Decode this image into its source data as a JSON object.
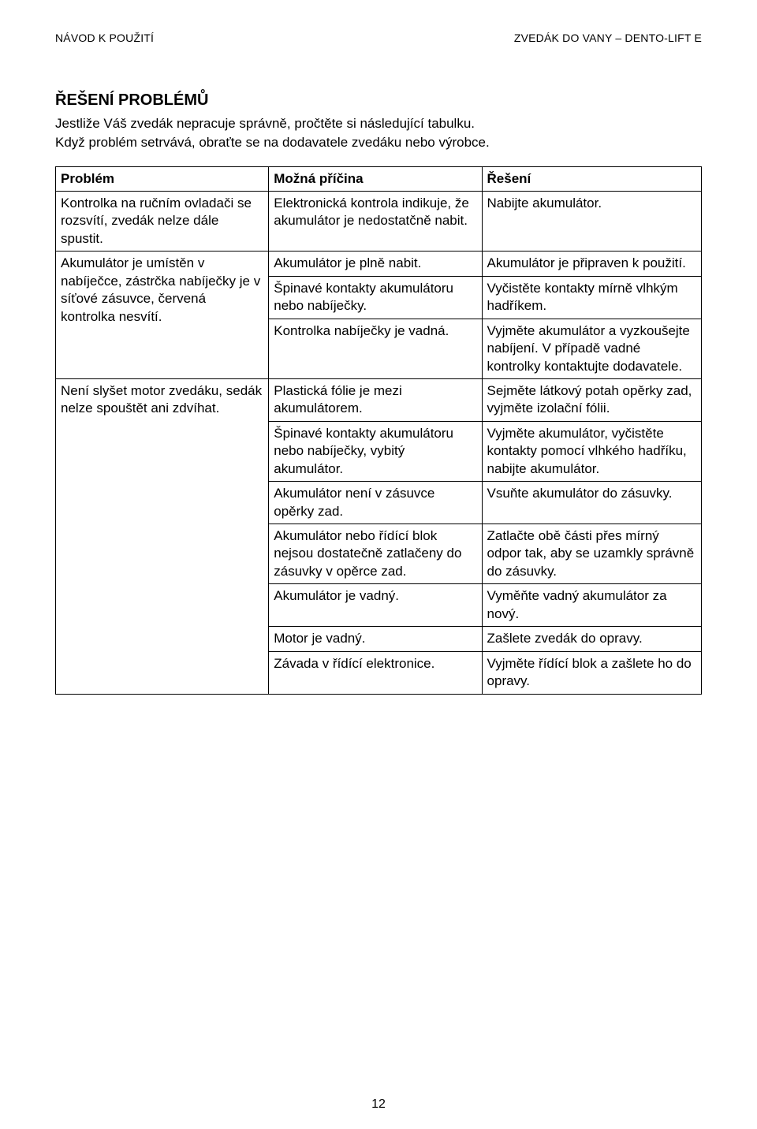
{
  "header": {
    "left": "NÁVOD K POUŽITÍ",
    "right": "ZVEDÁK DO VANY – DENTO-LIFT E"
  },
  "section_title": "ŘEŠENÍ PROBLÉMŮ",
  "intro_line1": "Jestliže Váš zvedák nepracuje správně, pročtěte si následující tabulku.",
  "intro_line2": "Když problém setrvává, obraťte se na dodavatele zvedáku nebo výrobce.",
  "table": {
    "headers": {
      "problem": "Problém",
      "cause": "Možná příčina",
      "fix": "Řešení"
    },
    "problems": [
      {
        "problem": "Kontrolka na ručním ovladači  se rozsvítí, zvedák nelze dále spustit.",
        "cause": "Elektronická kontrola indikuje, že akumulátor je nedostatčně nabit.",
        "fix": "Nabijte akumulátor."
      },
      {
        "problem": "Akumulátor je umístěn v nabíječce, zástrčka nabíječky je v síťové zásuvce, červená kontrolka nesvítí.",
        "causes": [
          {
            "cause": "Akumulátor je plně nabit.",
            "fix": "Akumulátor je připraven k použití."
          },
          {
            "cause": "Špinavé kontakty akumulátoru nebo nabíječky.",
            "fix": "Vyčistěte kontakty mírně vlhkým hadříkem."
          },
          {
            "cause": "Kontrolka nabíječky je vadná.",
            "fix": "Vyjměte akumulátor a vyzkoušejte nabíjení. V případě vadné kontrolky kontaktujte dodavatele."
          }
        ]
      },
      {
        "problem": "Není slyšet motor zvedáku, sedák nelze spouštět ani zdvíhat.",
        "causes": [
          {
            "cause": "Plastická fólie je mezi akumulátorem.",
            "fix": "Sejměte látkový potah opěrky zad, vyjměte izolační fólii."
          },
          {
            "cause": "Špinavé kontakty akumulátoru nebo nabíječky, vybitý akumulátor.",
            "fix": "Vyjměte akumulátor, vyčistěte kontakty pomocí vlhkého hadříku, nabijte akumulátor."
          },
          {
            "cause": "Akumulátor není v zásuvce opěrky zad.",
            "fix": "Vsuňte akumulátor do zásuvky."
          },
          {
            "cause": "Akumulátor nebo řídící blok nejsou dostatečně zatlačeny do zásuvky v opěrce zad.",
            "fix": "Zatlačte obě části přes mírný odpor tak, aby se uzamkly správně do zásuvky."
          },
          {
            "cause": "Akumulátor je vadný.",
            "fix": "Vyměňte vadný akumulátor za nový."
          },
          {
            "cause": "Motor  je vadný.",
            "fix": "Zašlete zvedák do opravy."
          },
          {
            "cause": "Závada v řídící elektronice.",
            "fix": "Vyjměte řídící blok a zašlete ho do opravy."
          }
        ]
      }
    ]
  },
  "page_number": "12"
}
